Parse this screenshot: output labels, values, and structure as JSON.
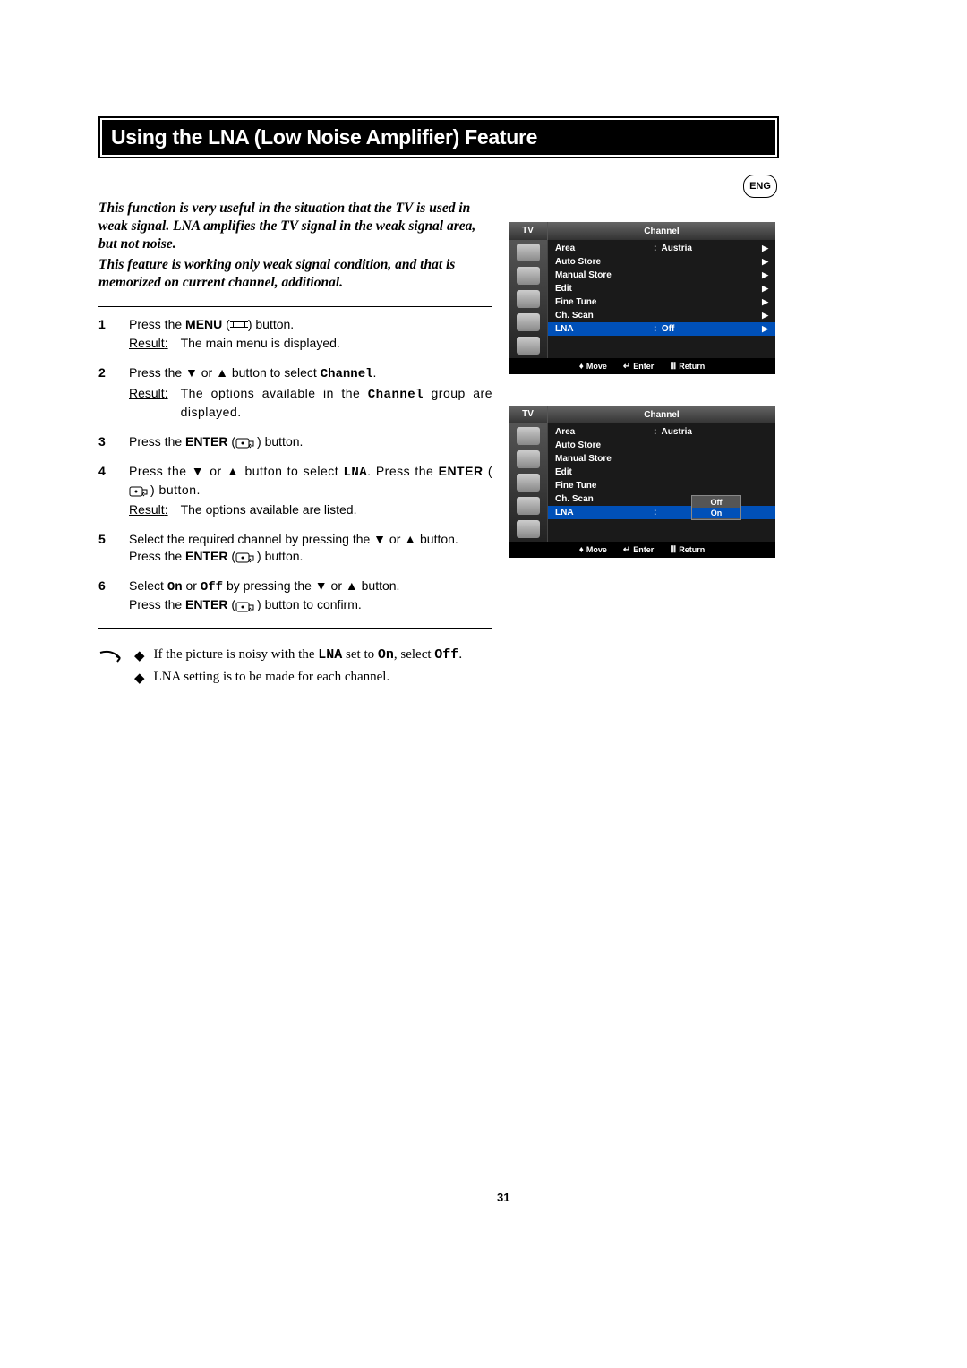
{
  "title": "Using the LNA (Low Noise Amplifier) Feature",
  "lang_badge": "ENG",
  "intro1": "This function is very useful in the situation that the TV is used in weak signal. LNA amplifies the TV signal in the weak signal area, but not noise.",
  "intro2": "This feature is working only weak signal condition, and that is memorized on current channel, additional.",
  "result_label": "Result",
  "steps": {
    "s1": {
      "num": "1",
      "text_a": "Press the ",
      "bold1": "MENU",
      "text_b": " (",
      "text_c": ") button.",
      "result": "The main menu is displayed."
    },
    "s2": {
      "num": "2",
      "text_a": "Press the ▼ or ▲ button to select ",
      "mono": "Channel",
      "text_b": ".",
      "result_a": "The options available in the ",
      "result_mono": "Channel",
      "result_b": " group are displayed."
    },
    "s3": {
      "num": "3",
      "text_a": "Press the ",
      "bold1": "ENTER",
      "text_b": " (",
      "text_c": ") button."
    },
    "s4": {
      "num": "4",
      "text_a": "Press the ▼ or ▲ button to select ",
      "mono": "LNA",
      "text_b": ". Press the ",
      "bold1": "ENTER",
      "text_c": " (",
      "text_d": ") button.",
      "result": "The options available are listed."
    },
    "s5": {
      "num": "5",
      "line1": "Select the required channel by pressing the ▼ or ▲ button.",
      "line2_a": "Press the ",
      "bold1": "ENTER",
      "line2_b": " (",
      "line2_c": ") button."
    },
    "s6": {
      "num": "6",
      "line1_a": "Select ",
      "mono1": "On",
      "line1_b": " or ",
      "mono2": "Off",
      "line1_c": "  by pressing the ▼ or ▲ button.",
      "line2_a": "Press the ",
      "bold1": "ENTER",
      "line2_b": " (",
      "line2_c": ") button to confirm."
    }
  },
  "notes": {
    "n1_a": "If the picture is noisy with the ",
    "n1_mono1": "LNA",
    "n1_b": " set to ",
    "n1_mono2": "On",
    "n1_c": ", select ",
    "n1_mono3": "Off",
    "n1_d": ".",
    "n2": "LNA setting is to be made for each channel."
  },
  "osd": {
    "tv": "TV",
    "title": "Channel",
    "rows": [
      {
        "label": "Area",
        "value": ":  Austria",
        "arrow": true
      },
      {
        "label": "Auto Store",
        "value": "",
        "arrow": true
      },
      {
        "label": "Manual Store",
        "value": "",
        "arrow": true
      },
      {
        "label": "Edit",
        "value": "",
        "arrow": true
      },
      {
        "label": "Fine Tune",
        "value": "",
        "arrow": true
      },
      {
        "label": "Ch. Scan",
        "value": "",
        "arrow": true
      },
      {
        "label": "LNA",
        "value": ":  Off",
        "arrow": true
      }
    ],
    "footer": {
      "move": "Move",
      "enter": "Enter",
      "return": "Return"
    },
    "sub_off": "Off",
    "sub_on": "On"
  },
  "page_number": "31"
}
